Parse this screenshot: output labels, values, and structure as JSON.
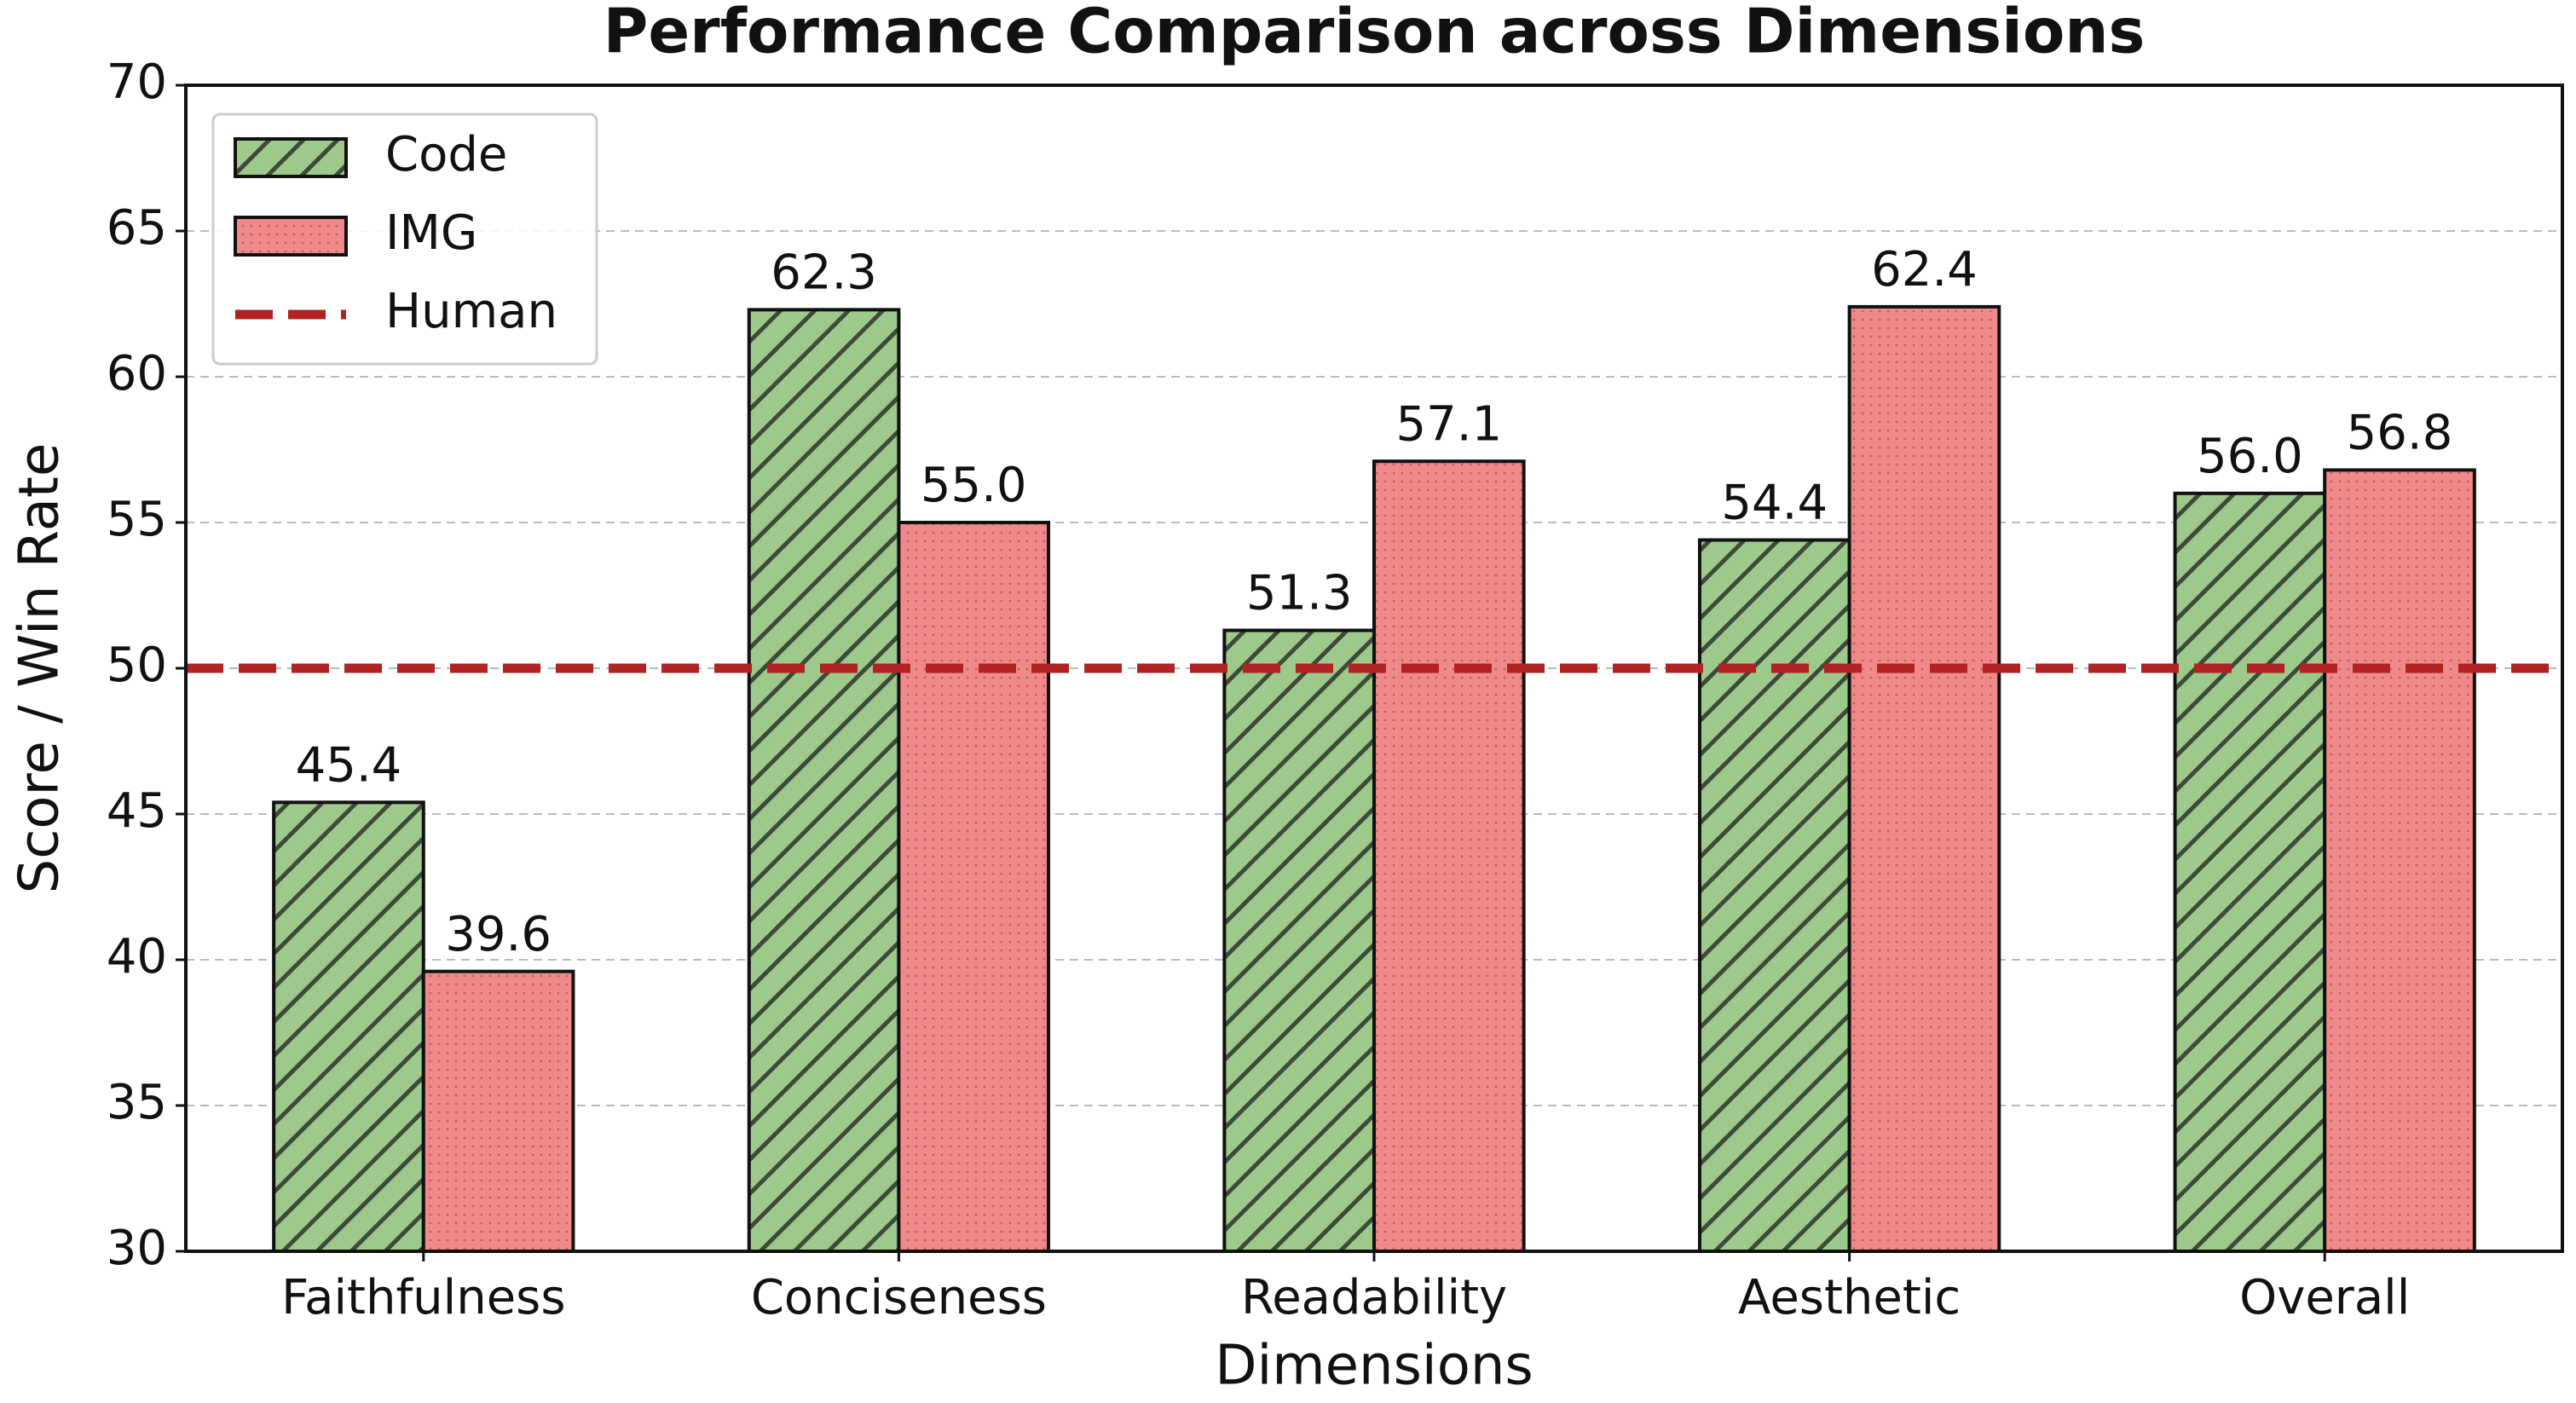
{
  "chart_data": {
    "type": "bar",
    "title": "Performance Comparison across Dimensions",
    "x_label": "Dimensions",
    "y_label": "Score / Win Rate",
    "categories": [
      "Faithfulness",
      "Conciseness",
      "Readability",
      "Aesthetic",
      "Overall"
    ],
    "series": [
      {
        "name": "Code",
        "color": "#9dc98a",
        "values": [
          45.4,
          62.3,
          51.3,
          54.4,
          56.0
        ],
        "value_labels": [
          "45.4",
          "62.3",
          "51.3",
          "54.4",
          "56.0"
        ]
      },
      {
        "name": "IMG",
        "color": "#f08a8a",
        "values": [
          39.6,
          55.0,
          57.1,
          62.4,
          56.8
        ],
        "value_labels": [
          "39.6",
          "55.0",
          "57.1",
          "62.4",
          "56.8"
        ]
      }
    ],
    "human_line": {
      "name": "Human",
      "value": 50,
      "color": "#b22222"
    },
    "ylim": [
      30,
      70
    ],
    "yticks": [
      30,
      35,
      40,
      45,
      50,
      55,
      60,
      65,
      70
    ],
    "grid": true,
    "legend": "upper left"
  }
}
